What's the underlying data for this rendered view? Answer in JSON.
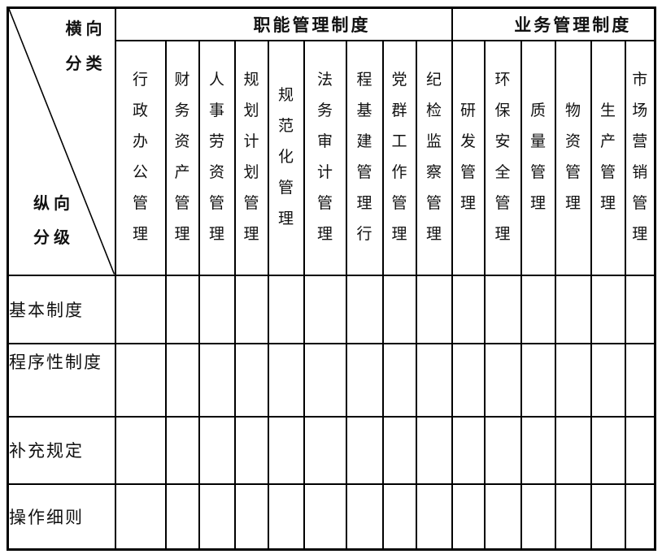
{
  "corner": {
    "top": [
      "横向",
      "分类"
    ],
    "bottom": [
      "纵向",
      "分级"
    ]
  },
  "groups": [
    {
      "label": "职能管理制度",
      "span": 9
    },
    {
      "label": "业务管理制度",
      "span": 6
    }
  ],
  "columns": [
    "行政办公管理",
    "财务资产管理",
    "人事劳资管理",
    "规划计划管理",
    "规范化管理",
    "法务审计管理",
    "程基建管理行",
    "党群工作管理",
    "纪检监察管理",
    "研发管理",
    "环保安全管理",
    "质量管理",
    "物资管理",
    "生产管理",
    "市场营销管理"
  ],
  "rows": [
    "基本制度",
    "程序性制度",
    "补充规定",
    "操作细则"
  ],
  "artifacts": [
    ";",
    ";"
  ],
  "colors": {
    "border": "#000000",
    "text": "#111111",
    "background": "#ffffff"
  }
}
